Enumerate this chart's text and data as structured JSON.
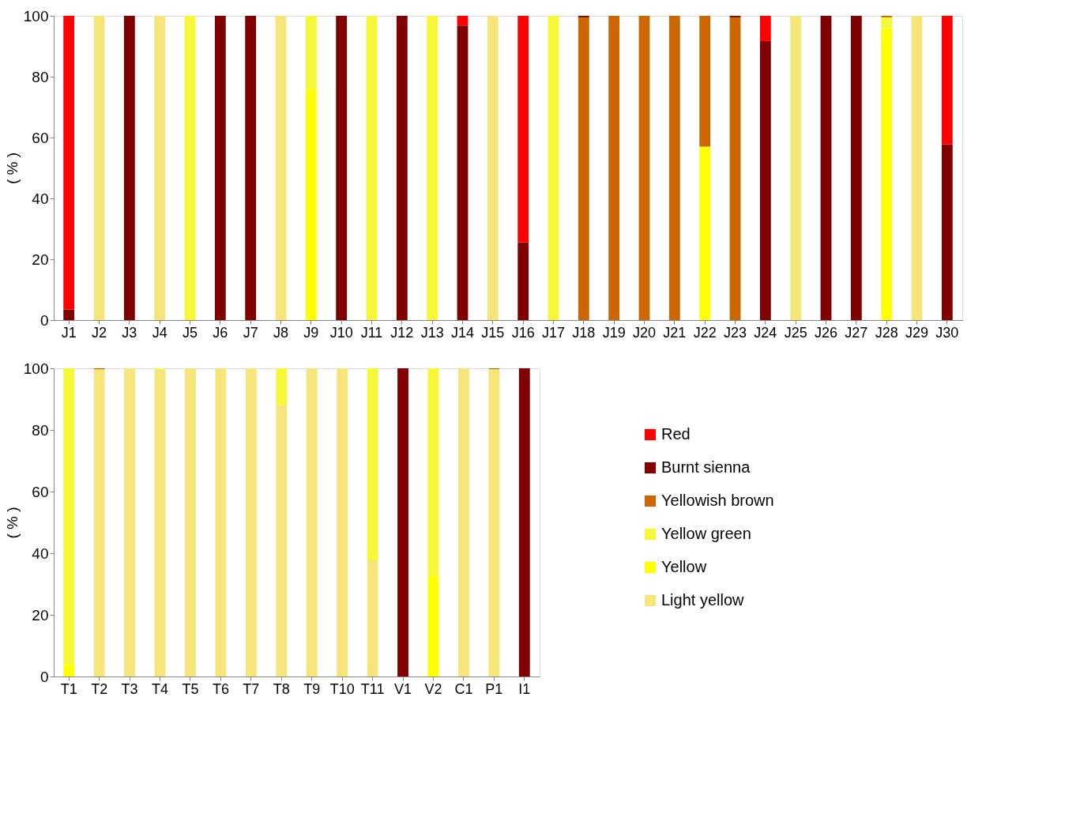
{
  "chart_data": [
    {
      "type": "bar",
      "stacked": true,
      "ylabel": "( % )",
      "ylim": [
        0,
        100
      ],
      "yticks": [
        0,
        20,
        40,
        60,
        80,
        100
      ],
      "legend": "right",
      "categories": [
        "J1",
        "J2",
        "J3",
        "J4",
        "J5",
        "J6",
        "J7",
        "J8",
        "J9",
        "J10",
        "J11",
        "J12",
        "J13",
        "J14",
        "J15",
        "J16",
        "J17",
        "J18",
        "J19",
        "J20",
        "J21",
        "J22",
        "J23",
        "J24",
        "J25",
        "J26",
        "J27",
        "J28",
        "J29",
        "J30"
      ],
      "series": [
        {
          "name": "Light yellow",
          "color": "#f6e57a",
          "values": [
            null,
            100,
            null,
            100,
            null,
            null,
            null,
            100,
            null,
            null,
            null,
            null,
            null,
            null,
            100,
            null,
            null,
            null,
            null,
            null,
            null,
            null,
            null,
            null,
            100,
            null,
            null,
            null,
            100,
            null
          ]
        },
        {
          "name": "Yellow",
          "color": "#ffff00",
          "values": [
            null,
            null,
            null,
            null,
            null,
            null,
            null,
            null,
            76,
            null,
            null,
            null,
            null,
            null,
            null,
            null,
            null,
            null,
            null,
            null,
            null,
            57,
            null,
            null,
            null,
            null,
            null,
            96,
            null,
            null
          ]
        },
        {
          "name": "Yellow green",
          "color": "#f7f73a",
          "values": [
            null,
            null,
            null,
            null,
            100,
            null,
            null,
            null,
            24,
            null,
            100,
            null,
            100,
            null,
            null,
            null,
            100,
            null,
            null,
            null,
            null,
            null,
            null,
            null,
            null,
            null,
            null,
            3.5,
            null,
            null
          ]
        },
        {
          "name": "Yellowish brown",
          "color": "#cc6600",
          "values": [
            null,
            null,
            null,
            null,
            null,
            null,
            null,
            null,
            null,
            null,
            null,
            null,
            null,
            null,
            null,
            null,
            null,
            99.5,
            100,
            100,
            100,
            43,
            99.5,
            null,
            null,
            null,
            null,
            0.5,
            null,
            null
          ]
        },
        {
          "name": "Burnt sienna",
          "color": "#800000",
          "values": [
            3.5,
            null,
            100,
            null,
            null,
            100,
            100,
            null,
            null,
            100,
            null,
            100,
            null,
            96.8,
            null,
            25.5,
            null,
            0.5,
            null,
            null,
            null,
            null,
            0.5,
            91.7,
            null,
            100,
            100,
            null,
            null,
            57.8
          ]
        },
        {
          "name": "Red",
          "color": "#ff0000",
          "values": [
            96.5,
            null,
            null,
            null,
            null,
            null,
            null,
            null,
            null,
            null,
            null,
            null,
            null,
            3.2,
            null,
            74.5,
            null,
            null,
            null,
            null,
            null,
            null,
            null,
            8.3,
            null,
            null,
            null,
            null,
            null,
            42.2
          ]
        }
      ]
    },
    {
      "type": "bar",
      "stacked": true,
      "ylabel": "( % )",
      "ylim": [
        0,
        100
      ],
      "yticks": [
        0,
        20,
        40,
        60,
        80,
        100
      ],
      "categories": [
        "T1",
        "T2",
        "T3",
        "T4",
        "T5",
        "T6",
        "T7",
        "T8",
        "T9",
        "T10",
        "T11",
        "V1",
        "V2",
        "C1",
        "P1",
        "I1"
      ],
      "series": [
        {
          "color": "#f6e57a",
          "values": [
            null,
            99.7,
            100,
            99.7,
            100,
            100,
            100,
            88,
            100,
            100,
            37.7,
            null,
            null,
            100,
            99.7,
            null
          ]
        },
        {
          "color": "#ffff00",
          "values": [
            4,
            null,
            null,
            null,
            null,
            null,
            null,
            null,
            null,
            null,
            null,
            null,
            32.7,
            null,
            null,
            null
          ]
        },
        {
          "color": "#f7f73a",
          "values": [
            96,
            null,
            null,
            0.3,
            null,
            null,
            null,
            12,
            null,
            null,
            62.3,
            null,
            67.3,
            null,
            null,
            null
          ]
        },
        {
          "color": "#cc6600",
          "values": [
            null,
            0.3,
            null,
            null,
            null,
            null,
            null,
            null,
            null,
            null,
            null,
            null,
            null,
            null,
            0.3,
            null
          ]
        },
        {
          "color": "#800000",
          "values": [
            null,
            null,
            null,
            null,
            null,
            null,
            null,
            null,
            null,
            null,
            null,
            100,
            null,
            null,
            null,
            100
          ]
        }
      ]
    }
  ]
}
